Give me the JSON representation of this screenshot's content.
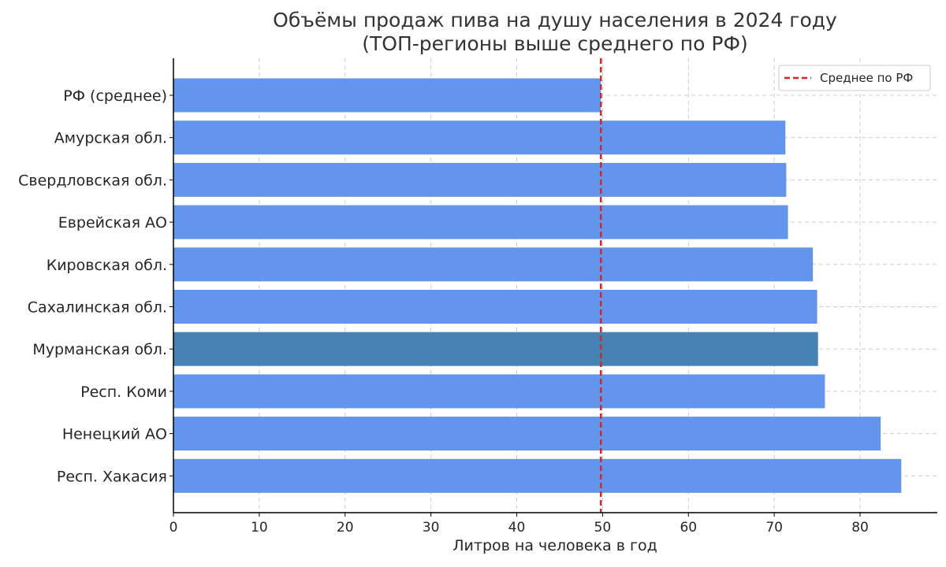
{
  "chart_data": {
    "type": "bar",
    "orientation": "horizontal",
    "title_line1": "Объёмы продаж пива на душу населения в 2024 году",
    "title_line2": "(ТОП-регионы выше среднего по РФ)",
    "xlabel": "Литров на человека в год",
    "ylabel": "",
    "categories": [
      "РФ (среднее)",
      "Амурская обл.",
      "Свердловская обл.",
      "Еврейская АО",
      "Кировская обл.",
      "Сахалинская обл.",
      "Мурманская обл.",
      "Респ. Коми",
      "Ненецкий АО",
      "Респ. Хакасия"
    ],
    "values": [
      49.8,
      71.3,
      71.4,
      71.6,
      74.5,
      75.0,
      75.1,
      75.9,
      82.4,
      84.8
    ],
    "highlight_index": 6,
    "xlim": [
      0,
      89
    ],
    "xticks": [
      0,
      10,
      20,
      30,
      40,
      50,
      60,
      70,
      80
    ],
    "grid": true,
    "reference_line": {
      "label": "Среднее по РФ",
      "value": 49.8,
      "style": "dashed",
      "color": "#d62728"
    },
    "legend": {
      "position": "top-right",
      "entries": [
        "Среднее по РФ"
      ]
    },
    "colors": {
      "bar": "#6495ED",
      "highlight": "#4682B4",
      "reference": "#d62728",
      "grid": "#cccccc",
      "axis": "#000000"
    }
  }
}
